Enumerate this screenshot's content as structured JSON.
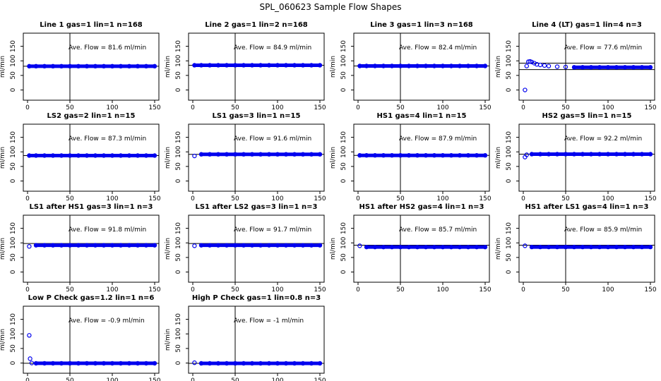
{
  "figure": {
    "title": "SPL_060623  Sample Flow Shapes"
  },
  "chart_data": [
    {
      "type": "scatter",
      "title": "Line 1 gas=1 lin=1 n=168",
      "ylabel": "ml/min",
      "annotation": "Ave. Flow =  81.6  ml/min",
      "xlim": [
        -5,
        155
      ],
      "ylim": [
        -35,
        195
      ],
      "xticks": [
        0,
        50,
        100,
        150
      ],
      "yticks": [
        0,
        50,
        100,
        150
      ],
      "vline": 50,
      "hlines": [
        81.6
      ],
      "series": [
        {
          "x": [
            2,
            10,
            20,
            30,
            40,
            50,
            60,
            70,
            80,
            90,
            100,
            110,
            120,
            130,
            140,
            150
          ],
          "y": [
            81.6,
            81.6,
            81.6,
            81.6,
            81.6,
            81.6,
            81.6,
            81.6,
            81.6,
            81.6,
            81.6,
            81.6,
            81.6,
            81.6,
            81.6,
            81.6
          ]
        }
      ]
    },
    {
      "type": "scatter",
      "title": "Line 2 gas=1 lin=2 n=168",
      "ylabel": "ml/min",
      "annotation": "Ave. Flow =  84.9  ml/min",
      "xlim": [
        -5,
        155
      ],
      "ylim": [
        -35,
        195
      ],
      "xticks": [
        0,
        50,
        100,
        150
      ],
      "yticks": [
        0,
        50,
        100,
        150
      ],
      "vline": 50,
      "hlines": [
        84.9
      ],
      "series": [
        {
          "x": [
            2,
            10,
            20,
            30,
            40,
            50,
            60,
            70,
            80,
            90,
            100,
            110,
            120,
            130,
            140,
            150
          ],
          "y": [
            84.9,
            84.9,
            84.9,
            84.9,
            84.9,
            84.9,
            84.9,
            84.9,
            84.9,
            84.9,
            84.9,
            84.9,
            84.9,
            84.9,
            84.9,
            84.9
          ]
        }
      ]
    },
    {
      "type": "scatter",
      "title": "Line 3 gas=1 lin=3 n=168",
      "ylabel": "ml/min",
      "annotation": "Ave. Flow =  82.4  ml/min",
      "xlim": [
        -5,
        155
      ],
      "ylim": [
        -35,
        195
      ],
      "xticks": [
        0,
        50,
        100,
        150
      ],
      "yticks": [
        0,
        50,
        100,
        150
      ],
      "vline": 50,
      "hlines": [
        82.4
      ],
      "series": [
        {
          "x": [
            2,
            10,
            20,
            30,
            40,
            50,
            60,
            70,
            80,
            90,
            100,
            110,
            120,
            130,
            140,
            150
          ],
          "y": [
            82.4,
            82.4,
            82.4,
            82.4,
            82.4,
            82.4,
            82.4,
            82.4,
            82.4,
            82.4,
            82.4,
            82.4,
            82.4,
            82.4,
            82.4,
            82.4
          ]
        }
      ]
    },
    {
      "type": "scatter",
      "title": "Line 4 (LT) gas=1 lin=4 n=3",
      "ylabel": "ml/min",
      "annotation": "Ave. Flow =  77.6  ml/min",
      "xlim": [
        -5,
        155
      ],
      "ylim": [
        -35,
        195
      ],
      "xticks": [
        0,
        50,
        100,
        150
      ],
      "yticks": [
        0,
        50,
        100,
        150
      ],
      "vline": 50,
      "hlines": [
        92,
        70
      ],
      "series": [
        {
          "x": [
            2,
            4,
            6,
            8,
            10,
            13,
            16,
            20,
            25,
            30,
            40,
            50,
            60,
            70,
            80,
            90,
            100,
            110,
            120,
            130,
            140,
            150
          ],
          "y": [
            0,
            82,
            97,
            98,
            96,
            92,
            88,
            86,
            84,
            82,
            80,
            79,
            78,
            78,
            78,
            78,
            78,
            78,
            78,
            78,
            78,
            78
          ]
        }
      ]
    },
    {
      "type": "scatter",
      "title": "LS2 gas=2 lin=1 n=15",
      "ylabel": "ml/min",
      "annotation": "Ave. Flow =  87.3  ml/min",
      "xlim": [
        -5,
        155
      ],
      "ylim": [
        -35,
        195
      ],
      "xticks": [
        0,
        50,
        100,
        150
      ],
      "yticks": [
        0,
        50,
        100,
        150
      ],
      "vline": 50,
      "hlines": [
        87.3
      ],
      "series": [
        {
          "x": [
            2,
            10,
            20,
            30,
            40,
            50,
            60,
            70,
            80,
            90,
            100,
            110,
            120,
            130,
            140,
            150
          ],
          "y": [
            87.3,
            87.3,
            87.3,
            87.3,
            87.3,
            87.3,
            87.3,
            87.3,
            87.3,
            87.3,
            87.3,
            87.3,
            87.3,
            87.3,
            87.3,
            87.3
          ]
        }
      ]
    },
    {
      "type": "scatter",
      "title": "LS1 gas=3 lin=1 n=15",
      "ylabel": "ml/min",
      "annotation": "Ave. Flow =  91.6  ml/min",
      "xlim": [
        -5,
        155
      ],
      "ylim": [
        -35,
        195
      ],
      "xticks": [
        0,
        50,
        100,
        150
      ],
      "yticks": [
        0,
        50,
        100,
        150
      ],
      "vline": 50,
      "hlines": [
        91.6
      ],
      "series": [
        {
          "x": [
            2,
            10,
            20,
            30,
            40,
            50,
            60,
            70,
            80,
            90,
            100,
            110,
            120,
            130,
            140,
            150
          ],
          "y": [
            86,
            91.6,
            91.6,
            91.6,
            91.6,
            91.6,
            91.6,
            91.6,
            91.6,
            91.6,
            91.6,
            91.6,
            91.6,
            91.6,
            91.6,
            91.6
          ]
        }
      ]
    },
    {
      "type": "scatter",
      "title": "HS1 gas=4 lin=1 n=15",
      "ylabel": "ml/min",
      "annotation": "Ave. Flow =  87.9  ml/min",
      "xlim": [
        -5,
        155
      ],
      "ylim": [
        -35,
        195
      ],
      "xticks": [
        0,
        50,
        100,
        150
      ],
      "yticks": [
        0,
        50,
        100,
        150
      ],
      "vline": 50,
      "hlines": [
        87.9
      ],
      "series": [
        {
          "x": [
            2,
            10,
            20,
            30,
            40,
            50,
            60,
            70,
            80,
            90,
            100,
            110,
            120,
            130,
            140,
            150
          ],
          "y": [
            87.9,
            87.9,
            87.9,
            87.9,
            87.9,
            87.9,
            87.9,
            87.9,
            87.9,
            87.9,
            87.9,
            87.9,
            87.9,
            87.9,
            87.9,
            87.9
          ]
        }
      ]
    },
    {
      "type": "scatter",
      "title": "HS2 gas=5 lin=1 n=15",
      "ylabel": "ml/min",
      "annotation": "Ave. Flow =  92.2  ml/min",
      "xlim": [
        -5,
        155
      ],
      "ylim": [
        -35,
        195
      ],
      "xticks": [
        0,
        50,
        100,
        150
      ],
      "yticks": [
        0,
        50,
        100,
        150
      ],
      "vline": 50,
      "hlines": [
        92.2
      ],
      "series": [
        {
          "x": [
            2,
            4,
            10,
            20,
            30,
            40,
            50,
            60,
            70,
            80,
            90,
            100,
            110,
            120,
            130,
            140,
            150
          ],
          "y": [
            82,
            90,
            92.2,
            92.2,
            92.2,
            92.2,
            92.2,
            92.2,
            92.2,
            92.2,
            92.2,
            92.2,
            92.2,
            92.2,
            92.2,
            92.2,
            92.2
          ]
        }
      ]
    },
    {
      "type": "scatter",
      "title": "LS1 after HS1 gas=3 lin=1 n=3",
      "ylabel": "ml/min",
      "annotation": "Ave. Flow =  91.8  ml/min",
      "xlim": [
        -5,
        155
      ],
      "ylim": [
        -35,
        195
      ],
      "xticks": [
        0,
        50,
        100,
        150
      ],
      "yticks": [
        0,
        50,
        100,
        150
      ],
      "vline": 50,
      "hlines": [
        98
      ],
      "series": [
        {
          "x": [
            2,
            10,
            20,
            30,
            40,
            50,
            60,
            70,
            80,
            90,
            100,
            110,
            120,
            130,
            140,
            150
          ],
          "y": [
            88,
            91.8,
            91.8,
            91.8,
            91.8,
            91.8,
            91.8,
            91.8,
            91.8,
            91.8,
            91.8,
            91.8,
            91.8,
            91.8,
            91.8,
            91.8
          ]
        }
      ]
    },
    {
      "type": "scatter",
      "title": "LS1 after LS2 gas=3 lin=1 n=3",
      "ylabel": "ml/min",
      "annotation": "Ave. Flow =  91.7  ml/min",
      "xlim": [
        -5,
        155
      ],
      "ylim": [
        -35,
        195
      ],
      "xticks": [
        0,
        50,
        100,
        150
      ],
      "yticks": [
        0,
        50,
        100,
        150
      ],
      "vline": 50,
      "hlines": [
        98
      ],
      "series": [
        {
          "x": [
            2,
            10,
            20,
            30,
            40,
            50,
            60,
            70,
            80,
            90,
            100,
            110,
            120,
            130,
            140,
            150
          ],
          "y": [
            90,
            91.7,
            91.7,
            91.7,
            91.7,
            91.7,
            91.7,
            91.7,
            91.7,
            91.7,
            91.7,
            91.7,
            91.7,
            91.7,
            91.7,
            91.7
          ]
        }
      ]
    },
    {
      "type": "scatter",
      "title": "HS1 after HS2 gas=4 lin=1 n=3",
      "ylabel": "ml/min",
      "annotation": "Ave. Flow =  85.7  ml/min",
      "xlim": [
        -5,
        155
      ],
      "ylim": [
        -35,
        195
      ],
      "xticks": [
        0,
        50,
        100,
        150
      ],
      "yticks": [
        0,
        50,
        100,
        150
      ],
      "vline": 50,
      "hlines": [
        92
      ],
      "series": [
        {
          "x": [
            2,
            10,
            20,
            30,
            40,
            50,
            60,
            70,
            80,
            90,
            100,
            110,
            120,
            130,
            140,
            150
          ],
          "y": [
            90,
            85.7,
            85.7,
            85.7,
            85.7,
            85.7,
            85.7,
            85.7,
            85.7,
            85.7,
            85.7,
            85.7,
            85.7,
            85.7,
            85.7,
            85.7
          ]
        }
      ]
    },
    {
      "type": "scatter",
      "title": "HS1 after LS1 gas=4 lin=1 n=3",
      "ylabel": "ml/min",
      "annotation": "Ave. Flow =  85.9  ml/min",
      "xlim": [
        -5,
        155
      ],
      "ylim": [
        -35,
        195
      ],
      "xticks": [
        0,
        50,
        100,
        150
      ],
      "yticks": [
        0,
        50,
        100,
        150
      ],
      "vline": 50,
      "hlines": [
        92
      ],
      "series": [
        {
          "x": [
            2,
            10,
            20,
            30,
            40,
            50,
            60,
            70,
            80,
            90,
            100,
            110,
            120,
            130,
            140,
            150
          ],
          "y": [
            90,
            85.9,
            85.9,
            85.9,
            85.9,
            85.9,
            85.9,
            85.9,
            85.9,
            85.9,
            85.9,
            85.9,
            85.9,
            85.9,
            85.9,
            85.9
          ]
        }
      ]
    },
    {
      "type": "scatter",
      "title": "Low P Check gas=1.2 lin=1 n=6",
      "ylabel": "ml/min",
      "annotation": "Ave. Flow =  -0.9  ml/min",
      "xlim": [
        -5,
        155
      ],
      "ylim": [
        -35,
        195
      ],
      "xticks": [
        0,
        50,
        100,
        150
      ],
      "yticks": [
        0,
        50,
        100,
        150
      ],
      "vline": 50,
      "hlines": [
        -0.9
      ],
      "series": [
        {
          "x": [
            2,
            3,
            5,
            10,
            20,
            30,
            40,
            50,
            60,
            70,
            80,
            90,
            100,
            110,
            120,
            130,
            140,
            150
          ],
          "y": [
            95,
            15,
            0,
            -0.9,
            -0.9,
            -0.9,
            -0.9,
            -0.9,
            -0.9,
            -0.9,
            -0.9,
            -0.9,
            -0.9,
            -0.9,
            -0.9,
            -0.9,
            -0.9,
            -0.9
          ]
        }
      ]
    },
    {
      "type": "scatter",
      "title": "High P Check gas=1 lin=0.8 n=3",
      "ylabel": "ml/min",
      "annotation": "Ave. Flow =  -1  ml/min",
      "xlim": [
        -5,
        155
      ],
      "ylim": [
        -35,
        195
      ],
      "xticks": [
        0,
        50,
        100,
        150
      ],
      "yticks": [
        0,
        50,
        100,
        150
      ],
      "vline": 50,
      "hlines": [
        -1
      ],
      "series": [
        {
          "x": [
            2,
            10,
            20,
            30,
            40,
            50,
            60,
            70,
            80,
            90,
            100,
            110,
            120,
            130,
            140,
            150
          ],
          "y": [
            1,
            -1,
            -1,
            -1,
            -1,
            -1,
            -1,
            -1,
            -1,
            -1,
            -1,
            -1,
            -1,
            -1,
            -1,
            -1
          ]
        }
      ]
    }
  ],
  "colors": {
    "points": "#0000ee",
    "axes": "#000000",
    "background": "#ffffff"
  }
}
